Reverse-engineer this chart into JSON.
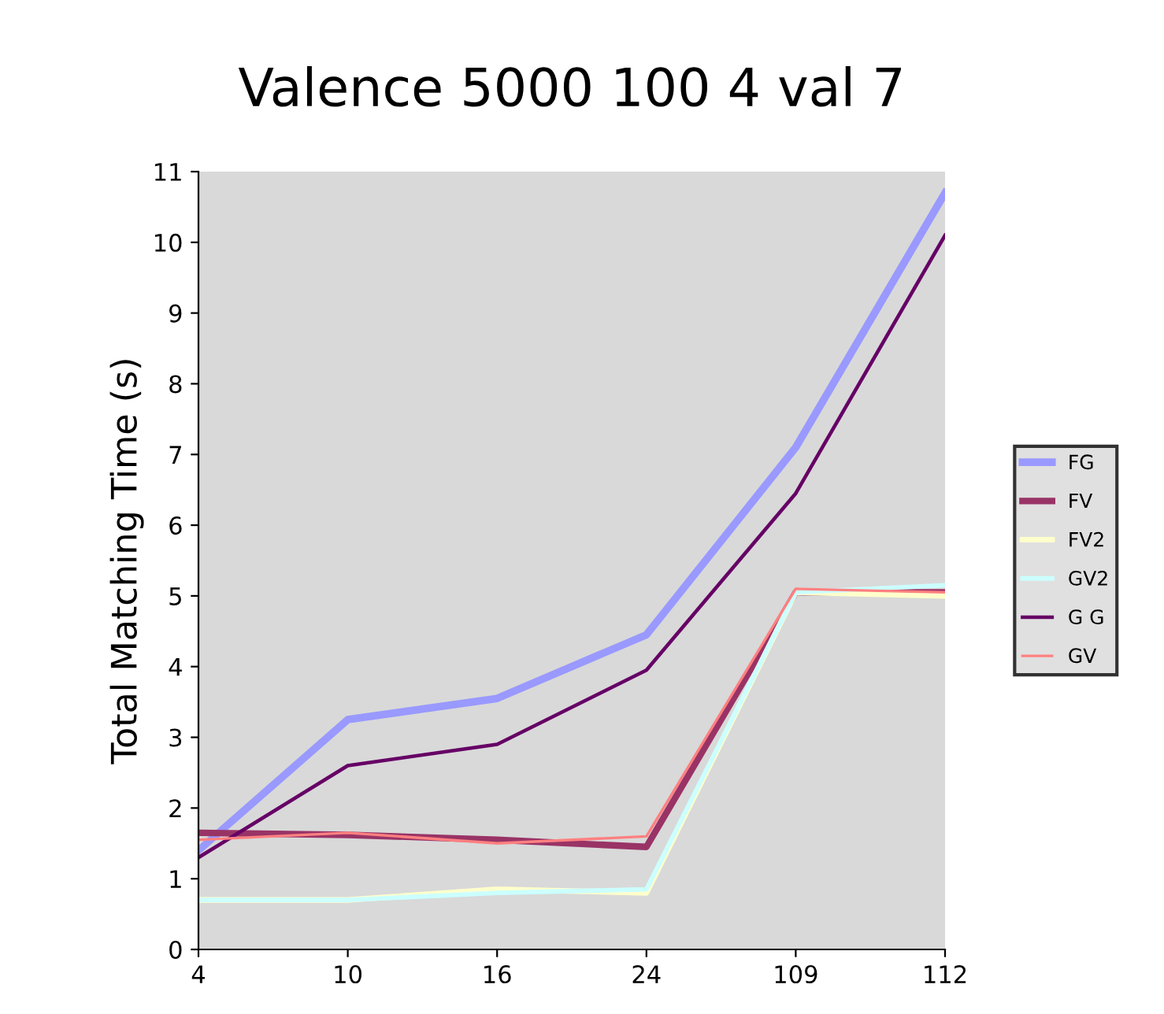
{
  "chart_data": {
    "type": "line",
    "title": "Valence 5000 100 4 val 7",
    "ylabel": "Total Matching Time (s)",
    "categories": [
      "4",
      "10",
      "16",
      "24",
      "109",
      "112"
    ],
    "ylim": [
      0,
      11
    ],
    "yticks": [
      0,
      1,
      2,
      3,
      4,
      5,
      6,
      7,
      8,
      9,
      10,
      11
    ],
    "grid": false,
    "legend": "right",
    "marker": "none",
    "line_style": "solid",
    "series": [
      {
        "name": "FG",
        "color": "#9999ff",
        "values": [
          1.4,
          3.25,
          3.55,
          4.45,
          7.1,
          10.7
        ]
      },
      {
        "name": "FV",
        "color": "#993366",
        "values": [
          1.65,
          1.62,
          1.55,
          1.45,
          5.05,
          5.05
        ]
      },
      {
        "name": "FV2",
        "color": "#ffffcc",
        "values": [
          0.7,
          0.7,
          0.85,
          0.8,
          5.05,
          5.0
        ]
      },
      {
        "name": "GV2",
        "color": "#ccffff",
        "values": [
          0.7,
          0.7,
          0.8,
          0.85,
          5.05,
          5.15
        ]
      },
      {
        "name": "G G",
        "color": "#660066",
        "values": [
          1.3,
          2.6,
          2.9,
          3.95,
          6.45,
          10.1
        ]
      },
      {
        "name": "GV",
        "color": "#ff8080",
        "values": [
          1.55,
          1.65,
          1.5,
          1.6,
          5.1,
          5.05
        ]
      }
    ]
  }
}
